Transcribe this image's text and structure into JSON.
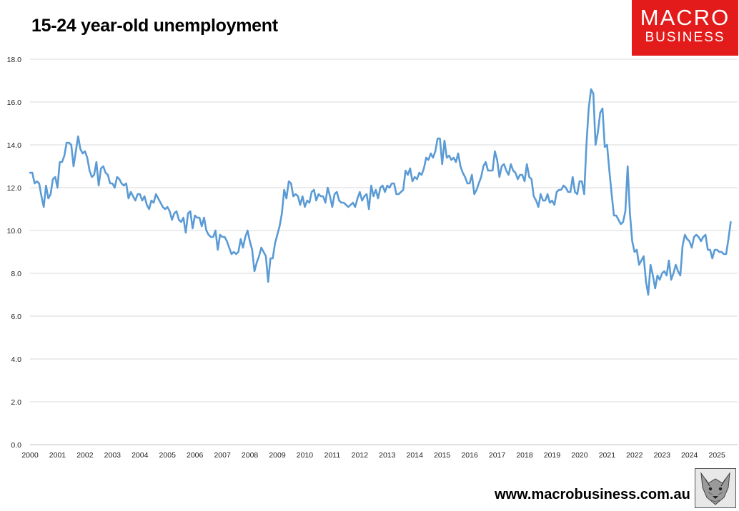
{
  "chart_data": {
    "type": "line",
    "title": "15-24 year-old unemployment",
    "xlabel": "",
    "ylabel": "",
    "ylim": [
      0,
      18
    ],
    "y_ticks": [
      "0.0",
      "2.0",
      "4.0",
      "6.0",
      "8.0",
      "10.0",
      "12.0",
      "14.0",
      "16.0",
      "18.0"
    ],
    "x_range": [
      2000,
      2025.75
    ],
    "x_ticks": [
      "2000",
      "2001",
      "2002",
      "2003",
      "2004",
      "2005",
      "2006",
      "2007",
      "2008",
      "2009",
      "2010",
      "2011",
      "2012",
      "2013",
      "2014",
      "2015",
      "2016",
      "2017",
      "2018",
      "2019",
      "2020",
      "2021",
      "2022",
      "2023",
      "2024",
      "2025"
    ],
    "grid": true,
    "legend": "none",
    "series": [
      {
        "color": "#5b9bd5",
        "x": [
          2000.0,
          2000.083,
          2000.167,
          2000.25,
          2000.333,
          2000.417,
          2000.5,
          2000.583,
          2000.667,
          2000.75,
          2000.833,
          2000.917,
          2001.0,
          2001.083,
          2001.167,
          2001.25,
          2001.333,
          2001.417,
          2001.5,
          2001.583,
          2001.667,
          2001.75,
          2001.833,
          2001.917,
          2002.0,
          2002.083,
          2002.167,
          2002.25,
          2002.333,
          2002.417,
          2002.5,
          2002.583,
          2002.667,
          2002.75,
          2002.833,
          2002.917,
          2003.0,
          2003.083,
          2003.167,
          2003.25,
          2003.333,
          2003.417,
          2003.5,
          2003.583,
          2003.667,
          2003.75,
          2003.833,
          2003.917,
          2004.0,
          2004.083,
          2004.167,
          2004.25,
          2004.333,
          2004.417,
          2004.5,
          2004.583,
          2004.667,
          2004.75,
          2004.833,
          2004.917,
          2005.0,
          2005.083,
          2005.167,
          2005.25,
          2005.333,
          2005.417,
          2005.5,
          2005.583,
          2005.667,
          2005.75,
          2005.833,
          2005.917,
          2006.0,
          2006.083,
          2006.167,
          2006.25,
          2006.333,
          2006.417,
          2006.5,
          2006.583,
          2006.667,
          2006.75,
          2006.833,
          2006.917,
          2007.0,
          2007.083,
          2007.167,
          2007.25,
          2007.333,
          2007.417,
          2007.5,
          2007.583,
          2007.667,
          2007.75,
          2007.833,
          2007.917,
          2008.0,
          2008.083,
          2008.167,
          2008.25,
          2008.333,
          2008.417,
          2008.5,
          2008.583,
          2008.667,
          2008.75,
          2008.833,
          2008.917,
          2009.0,
          2009.083,
          2009.167,
          2009.25,
          2009.333,
          2009.417,
          2009.5,
          2009.583,
          2009.667,
          2009.75,
          2009.833,
          2009.917,
          2010.0,
          2010.083,
          2010.167,
          2010.25,
          2010.333,
          2010.417,
          2010.5,
          2010.583,
          2010.667,
          2010.75,
          2010.833,
          2010.917,
          2011.0,
          2011.083,
          2011.167,
          2011.25,
          2011.333,
          2011.417,
          2011.5,
          2011.583,
          2011.667,
          2011.75,
          2011.833,
          2011.917,
          2012.0,
          2012.083,
          2012.167,
          2012.25,
          2012.333,
          2012.417,
          2012.5,
          2012.583,
          2012.667,
          2012.75,
          2012.833,
          2012.917,
          2013.0,
          2013.083,
          2013.167,
          2013.25,
          2013.333,
          2013.417,
          2013.5,
          2013.583,
          2013.667,
          2013.75,
          2013.833,
          2013.917,
          2014.0,
          2014.083,
          2014.167,
          2014.25,
          2014.333,
          2014.417,
          2014.5,
          2014.583,
          2014.667,
          2014.75,
          2014.833,
          2014.917,
          2015.0,
          2015.083,
          2015.167,
          2015.25,
          2015.333,
          2015.417,
          2015.5,
          2015.583,
          2015.667,
          2015.75,
          2015.833,
          2015.917,
          2016.0,
          2016.083,
          2016.167,
          2016.25,
          2016.333,
          2016.417,
          2016.5,
          2016.583,
          2016.667,
          2016.75,
          2016.833,
          2016.917,
          2017.0,
          2017.083,
          2017.167,
          2017.25,
          2017.333,
          2017.417,
          2017.5,
          2017.583,
          2017.667,
          2017.75,
          2017.833,
          2017.917,
          2018.0,
          2018.083,
          2018.167,
          2018.25,
          2018.333,
          2018.417,
          2018.5,
          2018.583,
          2018.667,
          2018.75,
          2018.833,
          2018.917,
          2019.0,
          2019.083,
          2019.167,
          2019.25,
          2019.333,
          2019.417,
          2019.5,
          2019.583,
          2019.667,
          2019.75,
          2019.833,
          2019.917,
          2020.0,
          2020.083,
          2020.167,
          2020.25,
          2020.333,
          2020.417,
          2020.5,
          2020.583,
          2020.667,
          2020.75,
          2020.833,
          2020.917,
          2021.0,
          2021.083,
          2021.167,
          2021.25,
          2021.333,
          2021.417,
          2021.5,
          2021.583,
          2021.667,
          2021.75,
          2021.833,
          2021.917,
          2022.0,
          2022.083,
          2022.167,
          2022.25,
          2022.333,
          2022.417,
          2022.5,
          2022.583,
          2022.667,
          2022.75,
          2022.833,
          2022.917,
          2023.0,
          2023.083,
          2023.167,
          2023.25,
          2023.333,
          2023.417,
          2023.5,
          2023.583,
          2023.667,
          2023.75,
          2023.833,
          2023.917,
          2024.0,
          2024.083,
          2024.167,
          2024.25,
          2024.333,
          2024.417,
          2024.5,
          2024.583,
          2024.667,
          2024.75,
          2024.833,
          2024.917,
          2025.0,
          2025.083,
          2025.167,
          2025.25,
          2025.333,
          2025.417,
          2025.5
        ],
        "values": [
          12.7,
          12.7,
          12.2,
          12.3,
          12.2,
          11.6,
          11.1,
          12.1,
          11.5,
          11.7,
          12.4,
          12.5,
          12.0,
          13.2,
          13.2,
          13.5,
          14.1,
          14.1,
          14.0,
          13.0,
          13.7,
          14.4,
          13.8,
          13.6,
          13.7,
          13.4,
          12.8,
          12.5,
          12.6,
          13.2,
          12.1,
          12.9,
          13.0,
          12.7,
          12.6,
          12.2,
          12.2,
          12.0,
          12.5,
          12.4,
          12.2,
          12.1,
          12.2,
          11.5,
          11.8,
          11.6,
          11.4,
          11.7,
          11.7,
          11.4,
          11.6,
          11.2,
          11.0,
          11.4,
          11.3,
          11.7,
          11.5,
          11.3,
          11.1,
          11.0,
          11.1,
          10.9,
          10.5,
          10.8,
          10.9,
          10.5,
          10.4,
          10.6,
          9.9,
          10.8,
          10.9,
          10.1,
          10.7,
          10.6,
          10.6,
          10.2,
          10.6,
          10.0,
          9.8,
          9.7,
          9.7,
          10.0,
          9.1,
          9.8,
          9.7,
          9.7,
          9.5,
          9.2,
          8.9,
          9.0,
          8.9,
          9.0,
          9.6,
          9.2,
          9.7,
          10.0,
          9.5,
          9.1,
          8.1,
          8.5,
          8.8,
          9.2,
          9.0,
          8.8,
          7.6,
          8.7,
          8.7,
          9.4,
          9.8,
          10.2,
          10.8,
          11.9,
          11.5,
          12.3,
          12.2,
          11.6,
          11.7,
          11.6,
          11.2,
          11.6,
          11.1,
          11.4,
          11.3,
          11.8,
          11.9,
          11.4,
          11.7,
          11.6,
          11.6,
          11.3,
          12.0,
          11.6,
          11.1,
          11.7,
          11.8,
          11.4,
          11.3,
          11.3,
          11.2,
          11.1,
          11.2,
          11.3,
          11.1,
          11.5,
          11.8,
          11.4,
          11.6,
          11.7,
          11.0,
          12.1,
          11.6,
          11.9,
          11.5,
          12.0,
          12.1,
          11.8,
          12.1,
          12.0,
          12.2,
          12.2,
          11.7,
          11.7,
          11.8,
          11.9,
          12.8,
          12.6,
          12.9,
          12.3,
          12.5,
          12.4,
          12.7,
          12.6,
          12.9,
          13.4,
          13.3,
          13.6,
          13.4,
          13.7,
          14.3,
          14.3,
          13.1,
          14.2,
          13.4,
          13.5,
          13.3,
          13.4,
          13.2,
          13.6,
          13.0,
          12.7,
          12.5,
          12.2,
          12.2,
          12.6,
          11.7,
          11.9,
          12.2,
          12.5,
          13.0,
          13.2,
          12.8,
          12.8,
          12.8,
          13.7,
          13.3,
          12.5,
          13.0,
          13.1,
          12.8,
          12.6,
          13.1,
          12.8,
          12.7,
          12.4,
          12.6,
          12.6,
          12.3,
          13.1,
          12.5,
          12.4,
          11.6,
          11.4,
          11.1,
          11.7,
          11.4,
          11.4,
          11.7,
          11.3,
          11.4,
          11.2,
          11.8,
          11.9,
          11.9,
          12.1,
          12.0,
          11.8,
          11.8,
          12.5,
          11.8,
          11.7,
          12.3,
          12.3,
          11.7,
          14.0,
          15.7,
          16.6,
          16.4,
          14.0,
          14.6,
          15.5,
          15.7,
          13.9,
          14.0,
          12.8,
          11.7,
          10.7,
          10.7,
          10.5,
          10.3,
          10.4,
          10.9,
          13.0,
          10.8,
          9.5,
          9.0,
          9.1,
          8.4,
          8.6,
          8.8,
          7.6,
          7.0,
          8.4,
          7.9,
          7.3,
          7.9,
          7.7,
          8.0,
          8.1,
          7.9,
          8.6,
          7.7,
          8.0,
          8.4,
          8.1,
          7.9,
          9.3,
          9.8,
          9.6,
          9.5,
          9.2,
          9.7,
          9.8,
          9.7,
          9.5,
          9.7,
          9.8,
          9.1,
          9.1,
          8.7,
          9.1,
          9.1,
          9.0,
          9.0,
          8.9,
          8.9,
          9.6,
          10.4
        ]
      }
    ]
  },
  "brand": {
    "line1": "MACRO",
    "line2": "BUSINESS",
    "website": "www.macrobusiness.com.au"
  }
}
